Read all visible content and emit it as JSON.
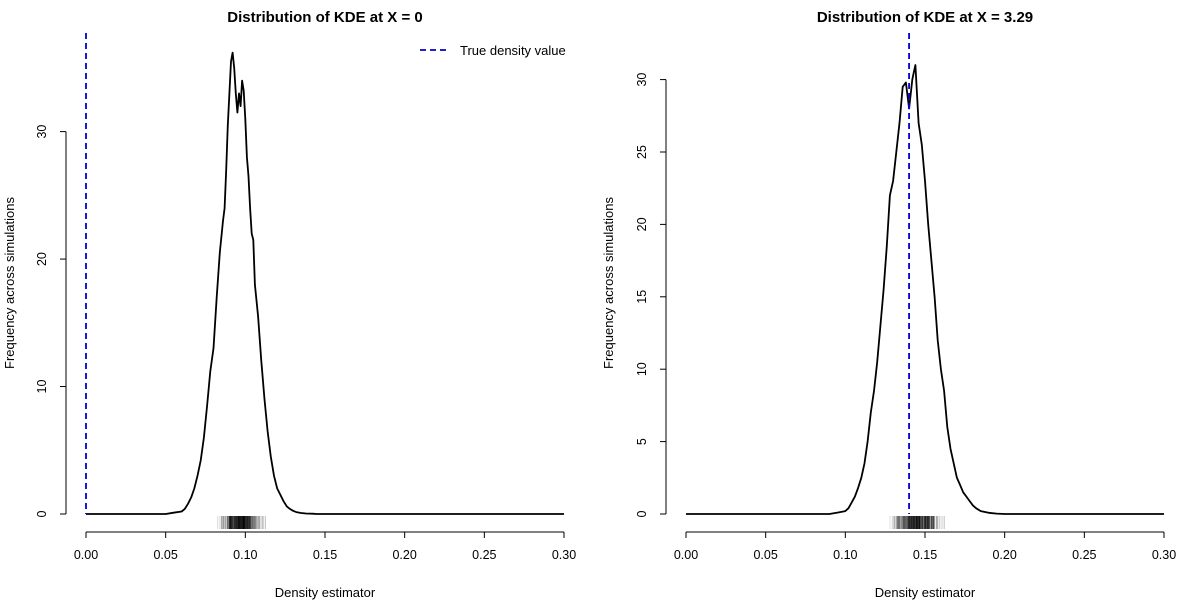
{
  "chart_data": [
    {
      "type": "line",
      "title": "Distribution of KDE at X = 0",
      "xlabel": "Density estimator",
      "ylabel": "Frequency across simulations",
      "xlim": [
        0,
        0.3
      ],
      "ylim": [
        0,
        37.5
      ],
      "xticks": [
        "0.00",
        "0.05",
        "0.10",
        "0.15",
        "0.20",
        "0.25",
        "0.30"
      ],
      "yticks": [
        "0",
        "10",
        "20",
        "30"
      ],
      "grid": false,
      "reference_line": {
        "x": 0.0,
        "color": "#0000cc",
        "style": "dashed"
      },
      "legend": {
        "placement": "top-right",
        "entries": [
          "True density value"
        ]
      },
      "series": [
        {
          "color": "#000000",
          "x": [
            0.0,
            0.05,
            0.055,
            0.06,
            0.062,
            0.064,
            0.066,
            0.068,
            0.07,
            0.072,
            0.074,
            0.076,
            0.078,
            0.08,
            0.082,
            0.084,
            0.086,
            0.087,
            0.088,
            0.089,
            0.09,
            0.091,
            0.092,
            0.093,
            0.094,
            0.095,
            0.096,
            0.097,
            0.098,
            0.099,
            0.1,
            0.101,
            0.102,
            0.103,
            0.104,
            0.105,
            0.106,
            0.108,
            0.11,
            0.112,
            0.114,
            0.116,
            0.118,
            0.12,
            0.122,
            0.124,
            0.126,
            0.128,
            0.13,
            0.132,
            0.135,
            0.138,
            0.142,
            0.145,
            0.15,
            0.2,
            0.3
          ],
          "y": [
            0,
            0,
            0.1,
            0.2,
            0.4,
            0.8,
            1.3,
            2.0,
            3.0,
            4.2,
            6.0,
            8.5,
            11.2,
            13.0,
            17.0,
            20.5,
            23.0,
            24.0,
            27.0,
            30.5,
            33.0,
            35.5,
            36.2,
            35.0,
            33.0,
            31.5,
            33.0,
            32.0,
            34.0,
            33.2,
            31.0,
            28.0,
            26.5,
            24.0,
            22.0,
            21.5,
            18.0,
            15.5,
            12.0,
            9.0,
            6.5,
            4.5,
            3.0,
            2.0,
            1.5,
            1.0,
            0.6,
            0.4,
            0.25,
            0.15,
            0.08,
            0.04,
            0.02,
            0,
            0,
            0,
            0
          ]
        }
      ],
      "rug_range": [
        0.052,
        0.142
      ]
    },
    {
      "type": "line",
      "title": "Distribution of KDE at X = 3.29",
      "xlabel": "Density estimator",
      "ylabel": "Frequency across simulations",
      "xlim": [
        0,
        0.3
      ],
      "ylim": [
        0,
        30.8
      ],
      "xticks": [
        "0.00",
        "0.05",
        "0.10",
        "0.15",
        "0.20",
        "0.25",
        "0.30"
      ],
      "yticks": [
        "0",
        "5",
        "10",
        "15",
        "20",
        "25",
        "30"
      ],
      "grid": false,
      "reference_line": {
        "x": 0.14,
        "color": "#0000cc",
        "style": "dashed"
      },
      "series": [
        {
          "color": "#000000",
          "x": [
            0.0,
            0.09,
            0.095,
            0.1,
            0.102,
            0.104,
            0.106,
            0.108,
            0.11,
            0.112,
            0.114,
            0.116,
            0.118,
            0.12,
            0.122,
            0.124,
            0.126,
            0.128,
            0.13,
            0.132,
            0.134,
            0.136,
            0.138,
            0.14,
            0.142,
            0.143,
            0.144,
            0.145,
            0.146,
            0.148,
            0.15,
            0.152,
            0.154,
            0.156,
            0.158,
            0.16,
            0.162,
            0.164,
            0.166,
            0.168,
            0.17,
            0.172,
            0.174,
            0.176,
            0.178,
            0.18,
            0.182,
            0.185,
            0.19,
            0.195,
            0.2,
            0.3
          ],
          "y": [
            0,
            0,
            0.1,
            0.2,
            0.4,
            0.8,
            1.2,
            1.8,
            2.5,
            3.5,
            5.0,
            7.0,
            8.5,
            10.5,
            13.0,
            15.5,
            18.5,
            22.0,
            23.0,
            25.0,
            27.0,
            29.5,
            29.8,
            28.0,
            30.0,
            30.5,
            31.0,
            29.0,
            27.0,
            25.5,
            23.0,
            20.0,
            17.5,
            15.0,
            12.0,
            10.0,
            8.5,
            6.0,
            4.5,
            3.5,
            2.5,
            2.0,
            1.5,
            1.2,
            0.9,
            0.6,
            0.4,
            0.2,
            0.08,
            0.03,
            0,
            0
          ]
        }
      ],
      "rug_range": [
        0.092,
        0.198
      ]
    }
  ]
}
